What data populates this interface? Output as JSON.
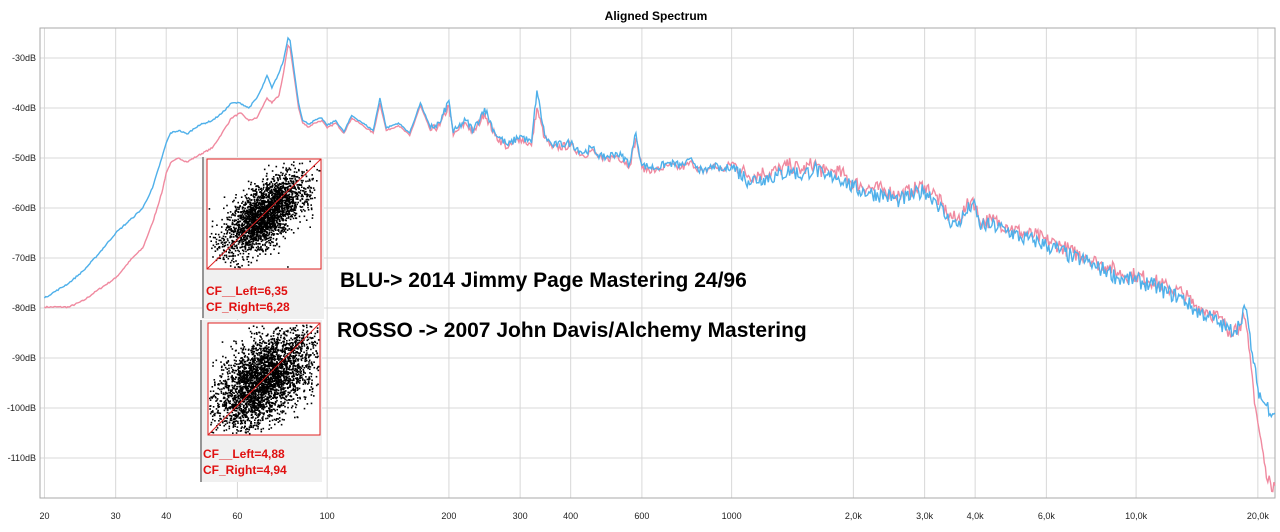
{
  "chart_data": {
    "type": "line",
    "title": "Aligned Spectrum",
    "xscale": "log",
    "xlim": [
      19.5,
      22050
    ],
    "ylim": [
      -118,
      -24
    ],
    "grid": true,
    "x_ticks": [
      {
        "v": 20,
        "label": "20"
      },
      {
        "v": 30,
        "label": "30"
      },
      {
        "v": 40,
        "label": "40"
      },
      {
        "v": 60,
        "label": "60"
      },
      {
        "v": 100,
        "label": "100"
      },
      {
        "v": 200,
        "label": "200"
      },
      {
        "v": 300,
        "label": "300"
      },
      {
        "v": 400,
        "label": "400"
      },
      {
        "v": 600,
        "label": "600"
      },
      {
        "v": 1000,
        "label": "1000"
      },
      {
        "v": 2000,
        "label": "2,0k"
      },
      {
        "v": 3000,
        "label": "3,0k"
      },
      {
        "v": 4000,
        "label": "4,0k"
      },
      {
        "v": 6000,
        "label": "6,0k"
      },
      {
        "v": 10000,
        "label": "10,0k"
      },
      {
        "v": 20000,
        "label": "20,0k"
      }
    ],
    "y_ticks": [
      {
        "v": -30,
        "label": "-30dB"
      },
      {
        "v": -40,
        "label": "-40dB"
      },
      {
        "v": -50,
        "label": "-50dB"
      },
      {
        "v": -60,
        "label": "-60dB"
      },
      {
        "v": -70,
        "label": "-70dB"
      },
      {
        "v": -80,
        "label": "-80dB"
      },
      {
        "v": -90,
        "label": "-90dB"
      },
      {
        "v": -100,
        "label": "-100dB"
      },
      {
        "v": -110,
        "label": "-110dB"
      }
    ],
    "series": [
      {
        "name": "BLU",
        "color": "#4fb0ea",
        "points": [
          [
            20,
            -78
          ],
          [
            23,
            -75
          ],
          [
            25,
            -72.5
          ],
          [
            27,
            -69.5
          ],
          [
            30,
            -65
          ],
          [
            33,
            -62
          ],
          [
            35,
            -60
          ],
          [
            37,
            -56
          ],
          [
            39,
            -50
          ],
          [
            40,
            -47
          ],
          [
            41,
            -45
          ],
          [
            43,
            -44.5
          ],
          [
            45,
            -45.2
          ],
          [
            48,
            -43.5
          ],
          [
            52,
            -42.5
          ],
          [
            55,
            -41
          ],
          [
            58,
            -39
          ],
          [
            61,
            -39
          ],
          [
            64,
            -40
          ],
          [
            67,
            -38
          ],
          [
            69,
            -36
          ],
          [
            71,
            -33.5
          ],
          [
            73,
            -36
          ],
          [
            76,
            -33
          ],
          [
            78,
            -30.5
          ],
          [
            80,
            -26
          ],
          [
            81,
            -26.5
          ],
          [
            83,
            -33
          ],
          [
            85,
            -39
          ],
          [
            87,
            -42.5
          ],
          [
            90,
            -43.2
          ],
          [
            93,
            -42.5
          ],
          [
            97,
            -42
          ],
          [
            100,
            -43.5
          ],
          [
            105,
            -42.5
          ],
          [
            110,
            -44.8
          ],
          [
            115,
            -41.5
          ],
          [
            120,
            -42.5
          ],
          [
            130,
            -44.5
          ],
          [
            135,
            -38
          ],
          [
            140,
            -44
          ],
          [
            150,
            -43
          ],
          [
            160,
            -45
          ],
          [
            170,
            -39
          ],
          [
            180,
            -44
          ],
          [
            190,
            -43
          ],
          [
            200,
            -38.5
          ],
          [
            205,
            -45
          ],
          [
            210,
            -44
          ],
          [
            220,
            -42.5
          ],
          [
            230,
            -44.5
          ],
          [
            245,
            -40
          ],
          [
            260,
            -45
          ],
          [
            280,
            -47.5
          ],
          [
            300,
            -45.5
          ],
          [
            320,
            -47
          ],
          [
            330,
            -36.5
          ],
          [
            345,
            -45.5
          ],
          [
            360,
            -47.5
          ],
          [
            400,
            -47
          ],
          [
            430,
            -49
          ],
          [
            450,
            -48
          ],
          [
            480,
            -50
          ],
          [
            520,
            -49
          ],
          [
            560,
            -51
          ],
          [
            580,
            -45
          ],
          [
            600,
            -51.5
          ],
          [
            650,
            -52
          ],
          [
            700,
            -51
          ],
          [
            750,
            -51.5
          ],
          [
            800,
            -50.5
          ],
          [
            850,
            -53
          ],
          [
            900,
            -51.5
          ],
          [
            950,
            -52.5
          ],
          [
            1000,
            -51.5
          ],
          [
            1100,
            -54.5
          ],
          [
            1200,
            -54
          ],
          [
            1300,
            -53.5
          ],
          [
            1400,
            -52.5
          ],
          [
            1500,
            -53.5
          ],
          [
            1600,
            -52
          ],
          [
            1700,
            -54
          ],
          [
            1800,
            -53.5
          ],
          [
            1900,
            -54.5
          ],
          [
            2000,
            -56
          ],
          [
            2200,
            -57
          ],
          [
            2400,
            -57.5
          ],
          [
            2600,
            -58.5
          ],
          [
            2800,
            -57.5
          ],
          [
            3000,
            -56.5
          ],
          [
            3200,
            -58.5
          ],
          [
            3400,
            -62
          ],
          [
            3600,
            -63.5
          ],
          [
            3800,
            -61
          ],
          [
            3950,
            -59
          ],
          [
            4100,
            -63.5
          ],
          [
            4400,
            -63.5
          ],
          [
            4800,
            -64.5
          ],
          [
            5200,
            -66
          ],
          [
            5600,
            -66.5
          ],
          [
            6000,
            -67.5
          ],
          [
            6500,
            -68.5
          ],
          [
            7000,
            -70
          ],
          [
            7500,
            -70.5
          ],
          [
            8000,
            -72
          ],
          [
            8500,
            -72.5
          ],
          [
            9000,
            -74
          ],
          [
            10000,
            -74.5
          ],
          [
            11000,
            -75.5
          ],
          [
            12000,
            -77
          ],
          [
            13000,
            -78
          ],
          [
            14000,
            -80.5
          ],
          [
            15000,
            -81.5
          ],
          [
            16000,
            -83
          ],
          [
            17000,
            -84.5
          ],
          [
            18000,
            -83.5
          ],
          [
            18500,
            -79.5
          ],
          [
            19000,
            -84
          ],
          [
            19500,
            -91
          ],
          [
            20000,
            -96
          ],
          [
            20500,
            -98.5
          ],
          [
            21000,
            -99.5
          ],
          [
            22050,
            -101
          ]
        ]
      },
      {
        "name": "ROSSO",
        "color": "#f08aa0",
        "points": [
          [
            20,
            -79.8
          ],
          [
            23,
            -79.8
          ],
          [
            25,
            -78.5
          ],
          [
            27,
            -76.5
          ],
          [
            30,
            -74
          ],
          [
            33,
            -70
          ],
          [
            35,
            -68
          ],
          [
            37,
            -63
          ],
          [
            39,
            -57
          ],
          [
            40,
            -53
          ],
          [
            41,
            -51
          ],
          [
            43,
            -50
          ],
          [
            45,
            -50.8
          ],
          [
            48,
            -49.5
          ],
          [
            52,
            -48
          ],
          [
            55,
            -45
          ],
          [
            58,
            -42
          ],
          [
            61,
            -41
          ],
          [
            64,
            -42.5
          ],
          [
            67,
            -42
          ],
          [
            69,
            -40
          ],
          [
            71,
            -38
          ],
          [
            73,
            -39
          ],
          [
            76,
            -37.5
          ],
          [
            78,
            -33
          ],
          [
            80,
            -27.5
          ],
          [
            81,
            -28
          ],
          [
            83,
            -34
          ],
          [
            85,
            -40
          ],
          [
            87,
            -43
          ],
          [
            90,
            -43.8
          ],
          [
            93,
            -43
          ],
          [
            97,
            -42.5
          ],
          [
            100,
            -44
          ],
          [
            105,
            -43
          ],
          [
            110,
            -45
          ],
          [
            115,
            -42
          ],
          [
            120,
            -43
          ],
          [
            130,
            -45
          ],
          [
            135,
            -39
          ],
          [
            140,
            -44.5
          ],
          [
            150,
            -43.5
          ],
          [
            160,
            -45.5
          ],
          [
            170,
            -39.5
          ],
          [
            180,
            -44.5
          ],
          [
            190,
            -43.5
          ],
          [
            200,
            -39.5
          ],
          [
            205,
            -45.5
          ],
          [
            210,
            -44.5
          ],
          [
            220,
            -43
          ],
          [
            230,
            -45
          ],
          [
            245,
            -41
          ],
          [
            260,
            -45.5
          ],
          [
            280,
            -48
          ],
          [
            300,
            -46
          ],
          [
            320,
            -47.5
          ],
          [
            330,
            -40
          ],
          [
            345,
            -46
          ],
          [
            360,
            -48
          ],
          [
            400,
            -47.5
          ],
          [
            430,
            -49.5
          ],
          [
            450,
            -48.5
          ],
          [
            480,
            -50.5
          ],
          [
            520,
            -49.5
          ],
          [
            560,
            -51.5
          ],
          [
            580,
            -46
          ],
          [
            600,
            -52
          ],
          [
            650,
            -52.5
          ],
          [
            700,
            -51.5
          ],
          [
            750,
            -52
          ],
          [
            800,
            -51
          ],
          [
            850,
            -53
          ],
          [
            900,
            -51.5
          ],
          [
            950,
            -52.5
          ],
          [
            1000,
            -51
          ],
          [
            1100,
            -53.5
          ],
          [
            1200,
            -53
          ],
          [
            1300,
            -52.5
          ],
          [
            1400,
            -51.5
          ],
          [
            1500,
            -52.5
          ],
          [
            1600,
            -51
          ],
          [
            1700,
            -53
          ],
          [
            1800,
            -52.5
          ],
          [
            1900,
            -53.5
          ],
          [
            2000,
            -55
          ],
          [
            2200,
            -56
          ],
          [
            2400,
            -56.5
          ],
          [
            2600,
            -57.5
          ],
          [
            2800,
            -56.5
          ],
          [
            3000,
            -55.5
          ],
          [
            3200,
            -57.5
          ],
          [
            3400,
            -61
          ],
          [
            3600,
            -62.5
          ],
          [
            3800,
            -60
          ],
          [
            3950,
            -58
          ],
          [
            4100,
            -62.5
          ],
          [
            4400,
            -62.5
          ],
          [
            4800,
            -63.5
          ],
          [
            5200,
            -65
          ],
          [
            5600,
            -65.5
          ],
          [
            6000,
            -66.5
          ],
          [
            6500,
            -67.5
          ],
          [
            7000,
            -69
          ],
          [
            7500,
            -69.5
          ],
          [
            8000,
            -71
          ],
          [
            8500,
            -71.5
          ],
          [
            9000,
            -73
          ],
          [
            10000,
            -73.5
          ],
          [
            11000,
            -74.5
          ],
          [
            12000,
            -76
          ],
          [
            13000,
            -77
          ],
          [
            14000,
            -79.5
          ],
          [
            15000,
            -80.5
          ],
          [
            16000,
            -82
          ],
          [
            17000,
            -84.5
          ],
          [
            18000,
            -83.5
          ],
          [
            18500,
            -82
          ],
          [
            19000,
            -88
          ],
          [
            19500,
            -96
          ],
          [
            20000,
            -103
          ],
          [
            20500,
            -108
          ],
          [
            21000,
            -114
          ],
          [
            21500,
            -115
          ],
          [
            22050,
            -115.5
          ]
        ]
      }
    ],
    "annotations": {
      "legend_blue": "BLU-> 2014 Jimmy Page Mastering 24/96",
      "legend_red": "ROSSO -> 2007 John Davis/Alchemy Mastering"
    },
    "insets": [
      {
        "cf_left": "CF__Left=6,35",
        "cf_right": "CF_Right=6,28",
        "spread": "narrow"
      },
      {
        "cf_left": "CF__Left=4,88",
        "cf_right": "CF_Right=4,94",
        "spread": "wide"
      }
    ]
  }
}
